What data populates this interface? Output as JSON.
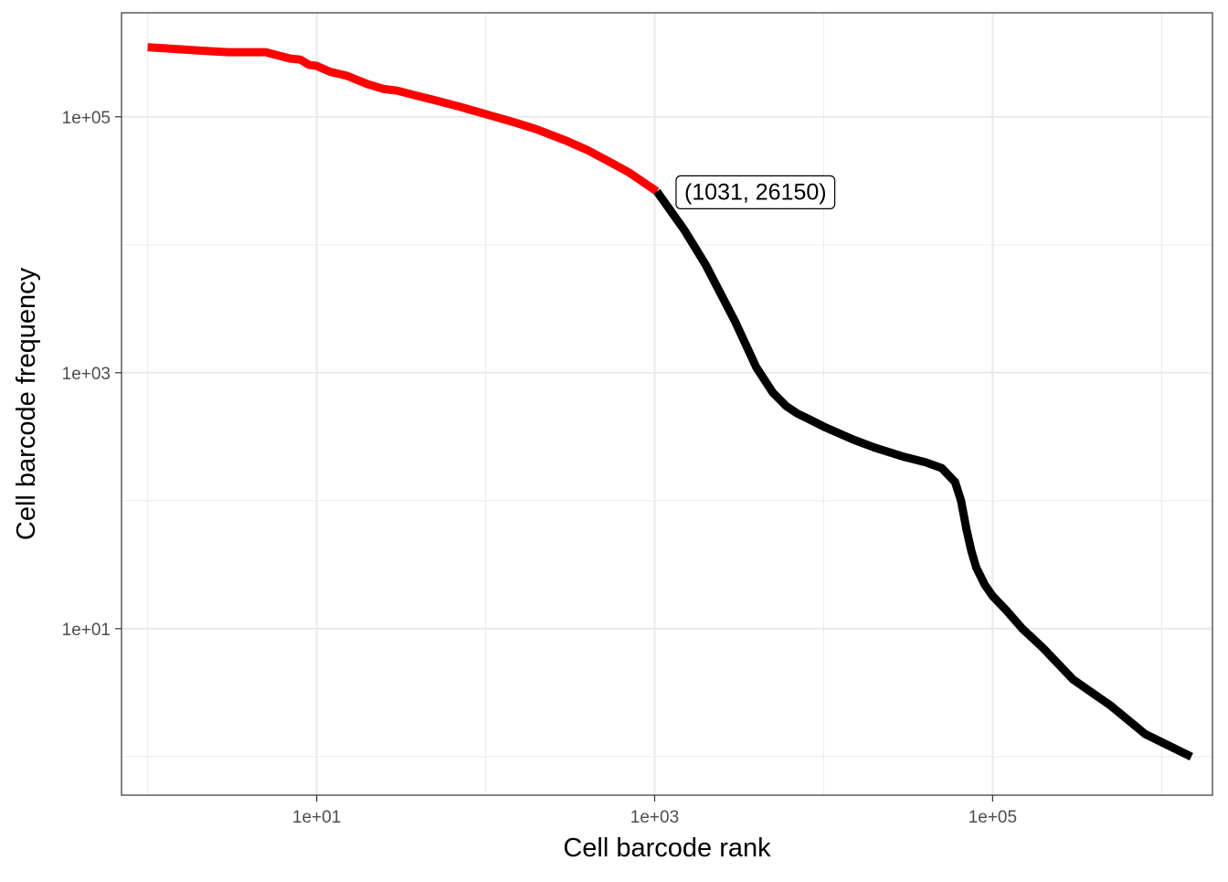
{
  "chart_data": {
    "type": "line",
    "title": "",
    "xlabel": "Cell barcode rank",
    "ylabel": "Cell barcode frequency",
    "xscale": "log10",
    "yscale": "log10",
    "xlim": [
      0.7,
      2000000
    ],
    "ylim": [
      0.5,
      650000
    ],
    "xticks": [
      {
        "value": 10,
        "label": "1e+01"
      },
      {
        "value": 1000,
        "label": "1e+03"
      },
      {
        "value": 100000,
        "label": "1e+05"
      }
    ],
    "yticks": [
      {
        "value": 10,
        "label": "1e+01"
      },
      {
        "value": 1000,
        "label": "1e+03"
      },
      {
        "value": 100000,
        "label": "1e+05"
      }
    ],
    "grid": true,
    "legend": "none",
    "series": [
      {
        "color": "#ff0000",
        "x": [
          1,
          2,
          3,
          4,
          5,
          6,
          7,
          8,
          9,
          10,
          12,
          15,
          20,
          25,
          30,
          40,
          50,
          70,
          100,
          150,
          200,
          300,
          400,
          500,
          700,
          1031
        ],
        "y": [
          350000,
          330000,
          320000,
          320000,
          320000,
          300000,
          285000,
          280000,
          255000,
          250000,
          225000,
          210000,
          180000,
          165000,
          160000,
          145000,
          135000,
          120000,
          105000,
          90000,
          80000,
          65000,
          55000,
          47000,
          37000,
          26150
        ]
      },
      {
        "color": "#000000",
        "x": [
          1031,
          1500,
          2000,
          3000,
          4000,
          5000,
          6000,
          7000,
          8000,
          10000,
          15000,
          20000,
          30000,
          40000,
          50000,
          60000,
          65000,
          70000,
          75000,
          80000,
          90000,
          100000,
          120000,
          150000,
          200000,
          300000,
          500000,
          800000,
          1500000
        ],
        "y": [
          26150,
          13000,
          7000,
          2500,
          1100,
          700,
          550,
          480,
          440,
          380,
          300,
          260,
          220,
          200,
          180,
          140,
          100,
          60,
          40,
          30,
          22,
          18,
          14,
          10,
          7,
          4,
          2.5,
          1.5,
          1
        ]
      }
    ],
    "annotations": [
      {
        "label": "(1031, 26150)",
        "x": 1031,
        "y": 26150
      }
    ]
  }
}
